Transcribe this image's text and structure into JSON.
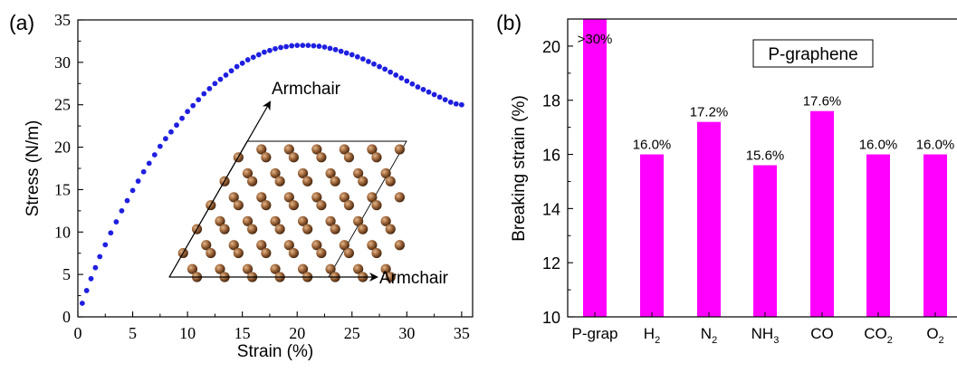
{
  "chart_data": [
    {
      "panel_label": "(a)",
      "type": "scatter",
      "xlabel": "Strain (%)",
      "ylabel": "Stress (N/m)",
      "xlim": [
        0,
        36
      ],
      "ylim": [
        0,
        35
      ],
      "xticks": [
        "0",
        "5",
        "10",
        "15",
        "20",
        "25",
        "30",
        "35"
      ],
      "yticks": [
        "0",
        "5",
        "10",
        "15",
        "20",
        "25",
        "30",
        "35"
      ],
      "grid": false,
      "marker_color": "#1f1fe0",
      "x": [
        0.4,
        0.8,
        1.2,
        1.6,
        2.0,
        2.5,
        3.0,
        3.5,
        4.0,
        4.5,
        5.0,
        5.5,
        6.0,
        6.5,
        7.0,
        7.5,
        8.0,
        8.5,
        9.0,
        9.5,
        10.0,
        10.5,
        11.0,
        11.5,
        12.0,
        12.5,
        13.0,
        13.5,
        14.0,
        14.5,
        15.0,
        15.5,
        16.0,
        16.5,
        17.0,
        17.5,
        18.0,
        18.5,
        19.0,
        19.5,
        20.0,
        20.5,
        21.0,
        21.5,
        22.0,
        22.5,
        23.0,
        23.5,
        24.0,
        24.5,
        25.0,
        25.5,
        26.0,
        26.5,
        27.0,
        27.5,
        28.0,
        28.5,
        29.0,
        29.5,
        30.0,
        30.5,
        31.0,
        31.5,
        32.0,
        32.5,
        33.0,
        33.5,
        34.0,
        34.5,
        35.0
      ],
      "y": [
        1.6,
        3.1,
        4.5,
        5.8,
        7.1,
        8.5,
        9.9,
        11.2,
        12.5,
        13.7,
        14.9,
        16.0,
        17.1,
        18.1,
        19.1,
        20.1,
        21.0,
        21.8,
        22.6,
        23.4,
        24.2,
        24.9,
        25.6,
        26.3,
        26.9,
        27.5,
        28.0,
        28.5,
        29.0,
        29.5,
        29.9,
        30.3,
        30.6,
        30.9,
        31.2,
        31.4,
        31.6,
        31.75,
        31.85,
        31.95,
        32.0,
        32.0,
        32.0,
        31.95,
        31.9,
        31.8,
        31.65,
        31.5,
        31.3,
        31.1,
        30.9,
        30.65,
        30.4,
        30.1,
        29.8,
        29.5,
        29.2,
        28.85,
        28.5,
        28.15,
        27.8,
        27.45,
        27.1,
        26.8,
        26.5,
        26.2,
        25.9,
        25.6,
        25.3,
        25.1,
        25.0
      ],
      "annotations": [
        "Armchair",
        "Armchair"
      ]
    },
    {
      "panel_label": "(b)",
      "type": "bar",
      "ylabel": "Breaking strain (%)",
      "ylim": [
        10,
        21
      ],
      "yticks": [
        "10",
        "12",
        "14",
        "16",
        "18",
        "20"
      ],
      "bar_color": "#ff00ff",
      "legend_box": "P-graphene",
      "categories": [
        {
          "main": "P-grap",
          "sub": ""
        },
        {
          "main": "H",
          "sub": "2"
        },
        {
          "main": "N",
          "sub": "2"
        },
        {
          "main": "NH",
          "sub": "3"
        },
        {
          "main": "CO",
          "sub": ""
        },
        {
          "main": "CO",
          "sub": "2"
        },
        {
          "main": "O",
          "sub": "2"
        }
      ],
      "values": [
        21,
        16.0,
        17.2,
        15.6,
        17.6,
        16.0,
        16.0
      ],
      "value_labels": [
        ">30%",
        "16.0%",
        "17.2%",
        "15.6%",
        "17.6%",
        "16.0%",
        "16.0%"
      ]
    }
  ],
  "colors": {
    "carbon_atom": "#8b5a32",
    "bond": "#8b5a32",
    "axis": "#000000"
  }
}
